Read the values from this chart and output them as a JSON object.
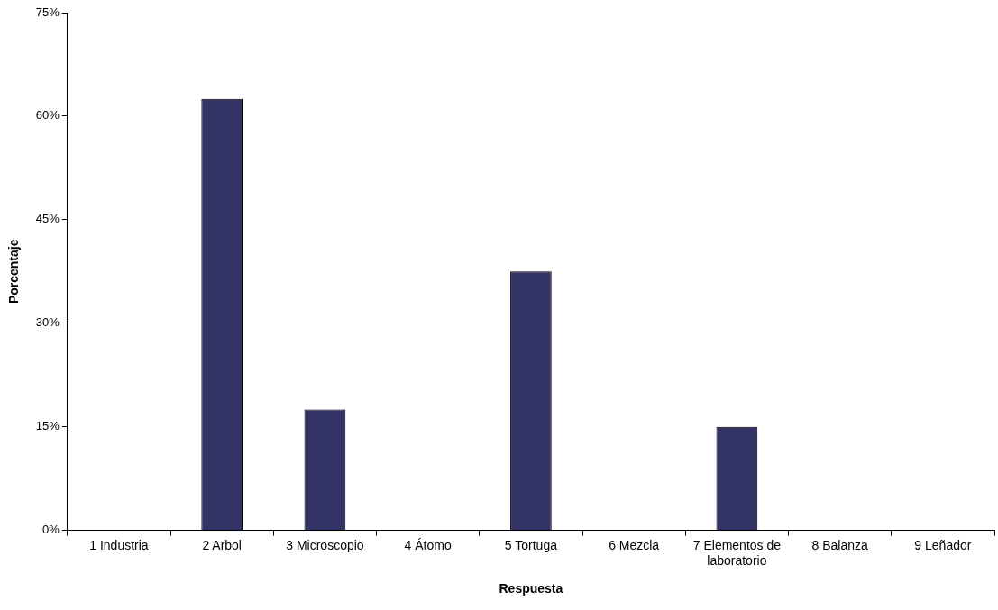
{
  "chart_data": {
    "type": "bar",
    "xlabel": "Respuesta",
    "ylabel": "Porcentaje",
    "categories": [
      "1 Industria",
      "2 Arbol",
      "3 Microscopio",
      "4 Átomo",
      "5 Tortuga",
      "6 Mezcla",
      "7 Elementos de laboratorio",
      "8 Balanza",
      "9 Leñador"
    ],
    "values": [
      0,
      62.5,
      17.5,
      0,
      37.5,
      0,
      15,
      0,
      0
    ],
    "color": "#333366",
    "ylim": [
      0,
      75
    ],
    "yticks": [
      {
        "value": 0,
        "label": "0%"
      },
      {
        "value": 15,
        "label": "15%"
      },
      {
        "value": 30,
        "label": "30%"
      },
      {
        "value": 45,
        "label": "45%"
      },
      {
        "value": 60,
        "label": "60%"
      },
      {
        "value": 75,
        "label": "75%"
      }
    ],
    "grid": false,
    "legend": false
  }
}
